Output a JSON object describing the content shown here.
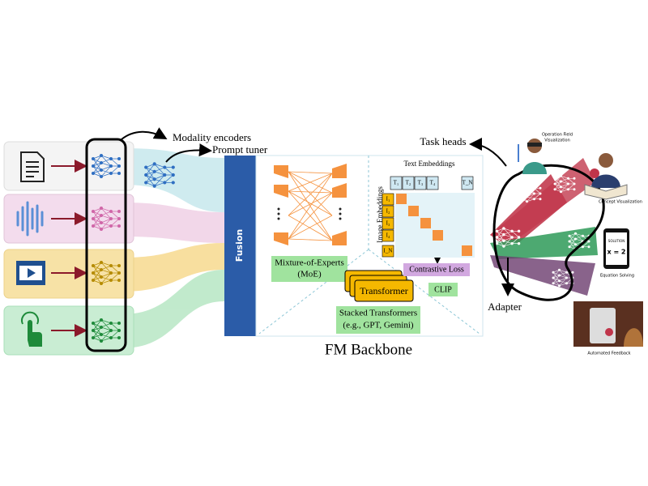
{
  "encoders": {
    "label": "Modality encoders",
    "prompt_tuner": "Prompt tuner"
  },
  "fusion": "Fusion",
  "backbone": {
    "title": "FM Backbone",
    "moe": {
      "lines": [
        "Mixture-of-Experts",
        "(MoE)"
      ]
    },
    "transformer": {
      "box": "Transformer",
      "lines": [
        "Stacked Transformers",
        "(e.g., GPT, Gemini)"
      ]
    },
    "clip": {
      "text_embeddings": "Text Embeddings",
      "image_embeddings": "Image Embeddings",
      "text_tokens": [
        "T₁",
        "T₂",
        "T₃",
        "T₄",
        "T_N"
      ],
      "image_tokens": [
        "I₁",
        "I₂",
        "I₃",
        "I₄",
        "I_N"
      ],
      "loss": "Contrastive Loss",
      "label": "CLIP"
    }
  },
  "heads": {
    "task_heads": "Task heads",
    "adapter": "Adapter",
    "applications": [
      {
        "lines": [
          "Operation Field",
          "Visualization"
        ]
      },
      {
        "lines": [
          "Concept Visualization"
        ]
      },
      {
        "lines": [
          "Equation Solving"
        ],
        "screen": [
          "SOLUTION",
          "x = 2"
        ]
      },
      {
        "lines": [
          "Automated Feedback"
        ]
      }
    ]
  }
}
